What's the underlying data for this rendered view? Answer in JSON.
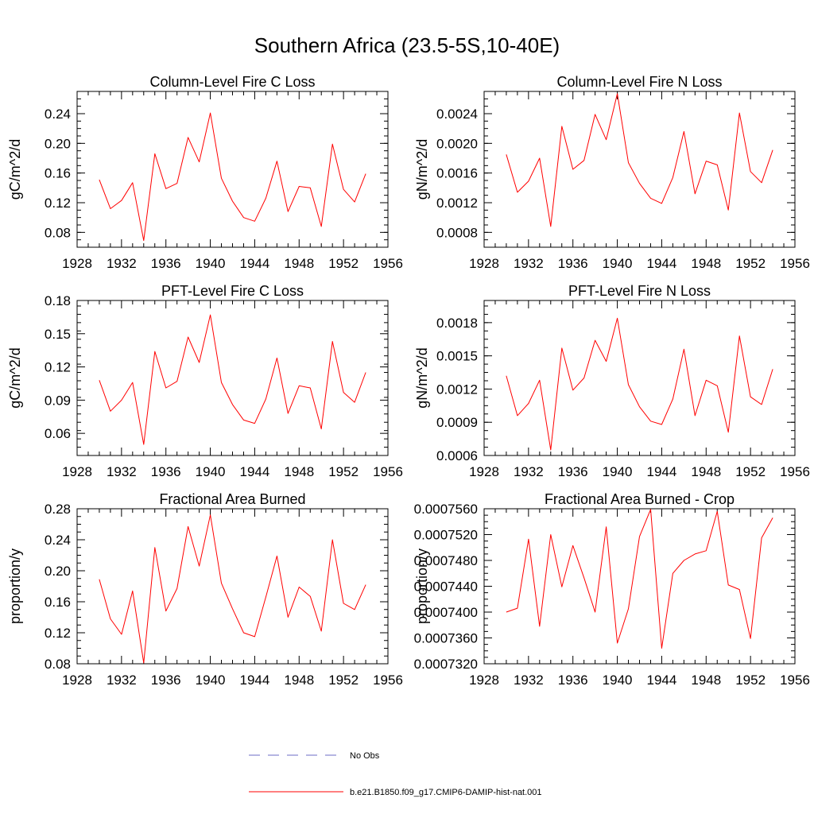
{
  "figure": {
    "title": "Southern Africa (23.5-5S,10-40E)"
  },
  "chart_data": [
    {
      "type": "line",
      "title": "Column-Level Fire C Loss",
      "ylabel": "gC/m^2/d",
      "xlabel": "",
      "xlim": [
        1928,
        1956
      ],
      "ylim": [
        0.06,
        0.27
      ],
      "xticks": [
        1928,
        1932,
        1936,
        1940,
        1944,
        1948,
        1952,
        1956
      ],
      "yticks": [
        0.08,
        0.12,
        0.16,
        0.2,
        0.24
      ],
      "ytick_labels": [
        "0.08",
        "0.12",
        "0.16",
        "0.20",
        "0.24"
      ],
      "x": [
        1930,
        1931,
        1932,
        1933,
        1934,
        1935,
        1936,
        1937,
        1938,
        1939,
        1940,
        1941,
        1942,
        1943,
        1944,
        1945,
        1946,
        1947,
        1948,
        1949,
        1950,
        1951,
        1952,
        1953,
        1954
      ],
      "series": [
        {
          "name": "b.e21.B1850.f09_g17.CMIP6-DAMIP-hist-nat.001",
          "values": [
            0.151,
            0.112,
            0.123,
            0.147,
            0.069,
            0.186,
            0.139,
            0.146,
            0.208,
            0.175,
            0.241,
            0.153,
            0.122,
            0.1,
            0.095,
            0.126,
            0.176,
            0.108,
            0.142,
            0.14,
            0.088,
            0.199,
            0.138,
            0.121,
            0.159
          ]
        }
      ]
    },
    {
      "type": "line",
      "title": "Column-Level Fire N Loss",
      "ylabel": "gN/m^2/d",
      "xlabel": "",
      "xlim": [
        1928,
        1956
      ],
      "ylim": [
        0.0006,
        0.0027
      ],
      "xticks": [
        1928,
        1932,
        1936,
        1940,
        1944,
        1948,
        1952,
        1956
      ],
      "yticks": [
        0.0008,
        0.0012,
        0.0016,
        0.002,
        0.0024
      ],
      "ytick_labels": [
        "0.0008",
        "0.0012",
        "0.0016",
        "0.0020",
        "0.0024"
      ],
      "x": [
        1930,
        1931,
        1932,
        1933,
        1934,
        1935,
        1936,
        1937,
        1938,
        1939,
        1940,
        1941,
        1942,
        1943,
        1944,
        1945,
        1946,
        1947,
        1948,
        1949,
        1950,
        1951,
        1952,
        1953,
        1954
      ],
      "series": [
        {
          "name": "b.e21.B1850.f09_g17.CMIP6-DAMIP-hist-nat.001",
          "values": [
            0.00185,
            0.00134,
            0.00149,
            0.0018,
            0.00088,
            0.00223,
            0.00165,
            0.00177,
            0.00239,
            0.00205,
            0.00267,
            0.00174,
            0.00146,
            0.00126,
            0.00119,
            0.00154,
            0.00216,
            0.00132,
            0.00176,
            0.00171,
            0.0011,
            0.00241,
            0.00162,
            0.00147,
            0.00191
          ]
        }
      ]
    },
    {
      "type": "line",
      "title": "PFT-Level Fire C Loss",
      "ylabel": "gC/m^2/d",
      "xlabel": "",
      "xlim": [
        1928,
        1956
      ],
      "ylim": [
        0.04,
        0.18
      ],
      "xticks": [
        1928,
        1932,
        1936,
        1940,
        1944,
        1948,
        1952,
        1956
      ],
      "yticks": [
        0.06,
        0.09,
        0.12,
        0.15,
        0.18
      ],
      "ytick_labels": [
        "0.06",
        "0.09",
        "0.12",
        "0.15",
        "0.18"
      ],
      "x": [
        1930,
        1931,
        1932,
        1933,
        1934,
        1935,
        1936,
        1937,
        1938,
        1939,
        1940,
        1941,
        1942,
        1943,
        1944,
        1945,
        1946,
        1947,
        1948,
        1949,
        1950,
        1951,
        1952,
        1953,
        1954
      ],
      "series": [
        {
          "name": "b.e21.B1850.f09_g17.CMIP6-DAMIP-hist-nat.001",
          "values": [
            0.108,
            0.08,
            0.09,
            0.106,
            0.05,
            0.134,
            0.101,
            0.107,
            0.147,
            0.124,
            0.167,
            0.106,
            0.086,
            0.072,
            0.069,
            0.091,
            0.128,
            0.078,
            0.103,
            0.101,
            0.064,
            0.143,
            0.097,
            0.088,
            0.115
          ]
        }
      ]
    },
    {
      "type": "line",
      "title": "PFT-Level Fire N Loss",
      "ylabel": "gN/m^2/d",
      "xlabel": "",
      "xlim": [
        1928,
        1956
      ],
      "ylim": [
        0.0006,
        0.002
      ],
      "xticks": [
        1928,
        1932,
        1936,
        1940,
        1944,
        1948,
        1952,
        1956
      ],
      "yticks": [
        0.0006,
        0.0009,
        0.0012,
        0.0015,
        0.0018
      ],
      "ytick_labels": [
        "0.0006",
        "0.0009",
        "0.0012",
        "0.0015",
        "0.0018"
      ],
      "x": [
        1930,
        1931,
        1932,
        1933,
        1934,
        1935,
        1936,
        1937,
        1938,
        1939,
        1940,
        1941,
        1942,
        1943,
        1944,
        1945,
        1946,
        1947,
        1948,
        1949,
        1950,
        1951,
        1952,
        1953,
        1954
      ],
      "series": [
        {
          "name": "b.e21.B1850.f09_g17.CMIP6-DAMIP-hist-nat.001",
          "values": [
            0.00132,
            0.00096,
            0.00107,
            0.00128,
            0.00065,
            0.00157,
            0.00119,
            0.0013,
            0.00164,
            0.00145,
            0.00184,
            0.00124,
            0.00104,
            0.00091,
            0.00088,
            0.00111,
            0.00156,
            0.00096,
            0.00128,
            0.00123,
            0.00081,
            0.00168,
            0.00113,
            0.00106,
            0.00138
          ]
        }
      ]
    },
    {
      "type": "line",
      "title": "Fractional Area Burned",
      "ylabel": "proportion/y",
      "xlabel": "",
      "xlim": [
        1928,
        1956
      ],
      "ylim": [
        0.08,
        0.28
      ],
      "xticks": [
        1928,
        1932,
        1936,
        1940,
        1944,
        1948,
        1952,
        1956
      ],
      "yticks": [
        0.08,
        0.12,
        0.16,
        0.2,
        0.24,
        0.28
      ],
      "ytick_labels": [
        "0.08",
        "0.12",
        "0.16",
        "0.20",
        "0.24",
        "0.28"
      ],
      "x": [
        1930,
        1931,
        1932,
        1933,
        1934,
        1935,
        1936,
        1937,
        1938,
        1939,
        1940,
        1941,
        1942,
        1943,
        1944,
        1945,
        1946,
        1947,
        1948,
        1949,
        1950,
        1951,
        1952,
        1953,
        1954
      ],
      "series": [
        {
          "name": "b.e21.B1850.f09_g17.CMIP6-DAMIP-hist-nat.001",
          "values": [
            0.189,
            0.138,
            0.118,
            0.174,
            0.081,
            0.23,
            0.148,
            0.177,
            0.257,
            0.206,
            0.272,
            0.184,
            0.151,
            0.12,
            0.115,
            0.166,
            0.219,
            0.14,
            0.179,
            0.167,
            0.122,
            0.24,
            0.158,
            0.15,
            0.182
          ]
        }
      ]
    },
    {
      "type": "line",
      "title": "Fractional Area Burned - Crop",
      "ylabel": "proportion/y",
      "xlabel": "",
      "xlim": [
        1928,
        1956
      ],
      "ylim": [
        0.000732,
        0.000756
      ],
      "xticks": [
        1928,
        1932,
        1936,
        1940,
        1944,
        1948,
        1952,
        1956
      ],
      "yticks": [
        0.000732,
        0.000736,
        0.00074,
        0.000744,
        0.000748,
        0.000752,
        0.000756
      ],
      "ytick_labels": [
        "0.0007320",
        "0.0007360",
        "0.0007400",
        "0.0007440",
        "0.0007480",
        "0.0007520",
        "0.0007560"
      ],
      "x": [
        1930,
        1931,
        1932,
        1933,
        1934,
        1935,
        1936,
        1937,
        1938,
        1939,
        1940,
        1941,
        1942,
        1943,
        1944,
        1945,
        1946,
        1947,
        1948,
        1949,
        1950,
        1951,
        1952,
        1953,
        1954
      ],
      "series": [
        {
          "name": "b.e21.B1850.f09_g17.CMIP6-DAMIP-hist-nat.001",
          "values": [
            0.00074,
            0.0007406,
            0.0007513,
            0.0007378,
            0.000752,
            0.0007439,
            0.0007503,
            0.0007453,
            0.00074,
            0.0007532,
            0.0007352,
            0.0007405,
            0.0007517,
            0.0007559,
            0.0007344,
            0.000746,
            0.000748,
            0.000749,
            0.0007495,
            0.0007556,
            0.0007442,
            0.0007435,
            0.0007359,
            0.0007515,
            0.0007546
          ]
        }
      ]
    }
  ],
  "legend": {
    "items": [
      {
        "label": "No Obs",
        "color": "#6b6bc4",
        "style": "dashed"
      },
      {
        "label": "b.e21.B1850.f09_g17.CMIP6-DAMIP-hist-nat.001",
        "color": "#ff0000",
        "style": "solid"
      }
    ]
  },
  "colors": {
    "series_line": "#ff0000",
    "axis": "#000000"
  }
}
